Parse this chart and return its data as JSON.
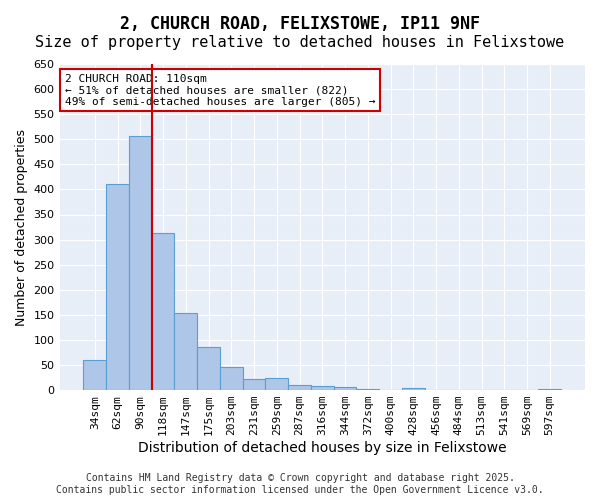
{
  "title1": "2, CHURCH ROAD, FELIXSTOWE, IP11 9NF",
  "title2": "Size of property relative to detached houses in Felixstowe",
  "xlabel": "Distribution of detached houses by size in Felixstowe",
  "ylabel": "Number of detached properties",
  "bar_labels": [
    "34sqm",
    "62sqm",
    "90sqm",
    "118sqm",
    "147sqm",
    "175sqm",
    "203sqm",
    "231sqm",
    "259sqm",
    "287sqm",
    "316sqm",
    "344sqm",
    "372sqm",
    "400sqm",
    "428sqm",
    "456sqm",
    "484sqm",
    "513sqm",
    "541sqm",
    "569sqm",
    "597sqm"
  ],
  "bar_values": [
    60,
    411,
    507,
    313,
    153,
    85,
    47,
    23,
    24,
    10,
    8,
    6,
    2,
    0,
    4,
    0,
    0,
    0,
    0,
    0,
    3
  ],
  "bar_color": "#aec6e8",
  "bar_edge_color": "#5a9fd4",
  "vline_x": 2,
  "vline_color": "#cc0000",
  "annotation_text": "2 CHURCH ROAD: 110sqm\n← 51% of detached houses are smaller (822)\n49% of semi-detached houses are larger (805) →",
  "annotation_box_color": "#cc0000",
  "ylim": [
    0,
    650
  ],
  "yticks": [
    0,
    50,
    100,
    150,
    200,
    250,
    300,
    350,
    400,
    450,
    500,
    550,
    600,
    650
  ],
  "background_color": "#e8eef8",
  "footer_text": "Contains HM Land Registry data © Crown copyright and database right 2025.\nContains public sector information licensed under the Open Government Licence v3.0.",
  "title_fontsize": 12,
  "subtitle_fontsize": 11,
  "xlabel_fontsize": 10,
  "ylabel_fontsize": 9,
  "tick_fontsize": 8,
  "annotation_fontsize": 8
}
